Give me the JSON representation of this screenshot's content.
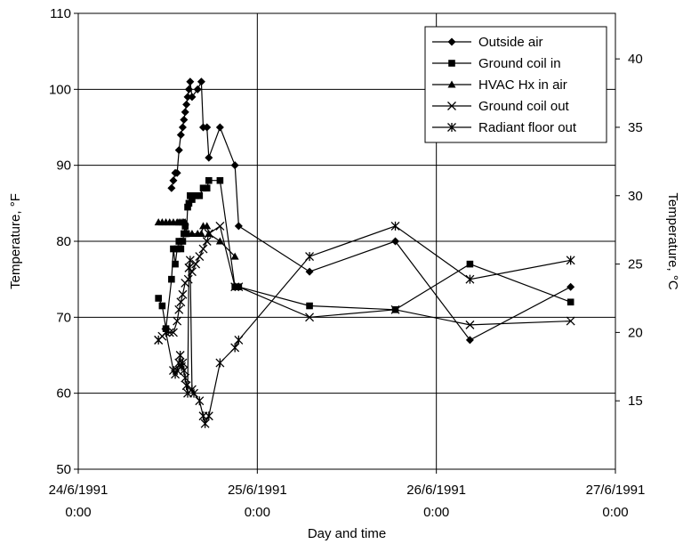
{
  "chart_data": {
    "type": "line",
    "xlabel": "Day and time",
    "ylabel": "Temperature, °F",
    "y2label": "Temperature, °C",
    "x_range": [
      "1991-06-24 00:00",
      "1991-06-27 00:00"
    ],
    "ylim": [
      50,
      110
    ],
    "y2lim": [
      10,
      43.33
    ],
    "x_ticks": [
      {
        "date": "24/6/1991",
        "time": "0:00"
      },
      {
        "date": "25/6/1991",
        "time": "0:00"
      },
      {
        "date": "26/6/1991",
        "time": "0:00"
      },
      {
        "date": "27/6/1991",
        "time": "0:00"
      }
    ],
    "y_ticks": [
      "50",
      "60",
      "70",
      "80",
      "90",
      "100",
      "110"
    ],
    "y2_ticks": [
      "15",
      "20",
      "25",
      "30",
      "35",
      "40"
    ],
    "grid": true,
    "legend_position": "top-right",
    "series": [
      {
        "name": "Outside air",
        "marker": "diamond",
        "points": [
          {
            "x": "1991-06-24 12:30",
            "y": 87
          },
          {
            "x": "1991-06-24 12:45",
            "y": 88
          },
          {
            "x": "1991-06-24 13:00",
            "y": 89
          },
          {
            "x": "1991-06-24 13:15",
            "y": 89
          },
          {
            "x": "1991-06-24 13:30",
            "y": 92
          },
          {
            "x": "1991-06-24 13:45",
            "y": 94
          },
          {
            "x": "1991-06-24 14:00",
            "y": 95
          },
          {
            "x": "1991-06-24 14:10",
            "y": 96
          },
          {
            "x": "1991-06-24 14:20",
            "y": 97
          },
          {
            "x": "1991-06-24 14:30",
            "y": 98
          },
          {
            "x": "1991-06-24 14:40",
            "y": 99
          },
          {
            "x": "1991-06-24 14:50",
            "y": 100
          },
          {
            "x": "1991-06-24 15:00",
            "y": 101
          },
          {
            "x": "1991-06-24 15:15",
            "y": 99
          },
          {
            "x": "1991-06-24 16:00",
            "y": 100
          },
          {
            "x": "1991-06-24 16:30",
            "y": 101
          },
          {
            "x": "1991-06-24 16:45",
            "y": 95
          },
          {
            "x": "1991-06-24 17:15",
            "y": 95
          },
          {
            "x": "1991-06-24 17:30",
            "y": 91
          },
          {
            "x": "1991-06-24 19:00",
            "y": 95
          },
          {
            "x": "1991-06-24 21:00",
            "y": 90
          },
          {
            "x": "1991-06-24 21:30",
            "y": 82
          },
          {
            "x": "1991-06-25 07:00",
            "y": 76
          },
          {
            "x": "1991-06-25 18:30",
            "y": 80
          },
          {
            "x": "1991-06-26 04:30",
            "y": 67
          },
          {
            "x": "1991-06-26 18:00",
            "y": 74
          }
        ]
      },
      {
        "name": "Ground coil in",
        "marker": "square",
        "points": [
          {
            "x": "1991-06-24 10:45",
            "y": 72.5
          },
          {
            "x": "1991-06-24 11:15",
            "y": 71.5
          },
          {
            "x": "1991-06-24 11:45",
            "y": 68.5
          },
          {
            "x": "1991-06-24 12:30",
            "y": 75
          },
          {
            "x": "1991-06-24 12:45",
            "y": 79
          },
          {
            "x": "1991-06-24 13:00",
            "y": 77
          },
          {
            "x": "1991-06-24 13:15",
            "y": 79
          },
          {
            "x": "1991-06-24 13:30",
            "y": 80
          },
          {
            "x": "1991-06-24 13:45",
            "y": 79
          },
          {
            "x": "1991-06-24 14:00",
            "y": 80
          },
          {
            "x": "1991-06-24 14:10",
            "y": 81
          },
          {
            "x": "1991-06-24 14:20",
            "y": 82
          },
          {
            "x": "1991-06-24 14:30",
            "y": 81
          },
          {
            "x": "1991-06-24 14:40",
            "y": 84.5
          },
          {
            "x": "1991-06-24 14:50",
            "y": 85
          },
          {
            "x": "1991-06-24 15:00",
            "y": 86
          },
          {
            "x": "1991-06-24 15:15",
            "y": 85.5
          },
          {
            "x": "1991-06-24 15:45",
            "y": 86
          },
          {
            "x": "1991-06-24 16:15",
            "y": 86
          },
          {
            "x": "1991-06-24 16:45",
            "y": 87
          },
          {
            "x": "1991-06-24 17:15",
            "y": 87
          },
          {
            "x": "1991-06-24 17:30",
            "y": 88
          },
          {
            "x": "1991-06-24 19:00",
            "y": 88
          },
          {
            "x": "1991-06-24 21:00",
            "y": 74
          },
          {
            "x": "1991-06-24 21:30",
            "y": 74
          },
          {
            "x": "1991-06-25 07:00",
            "y": 71.5
          },
          {
            "x": "1991-06-25 18:30",
            "y": 71
          },
          {
            "x": "1991-06-26 04:30",
            "y": 77
          },
          {
            "x": "1991-06-26 18:00",
            "y": 72
          }
        ]
      },
      {
        "name": "HVAC Hx in air",
        "marker": "triangle",
        "points": [
          {
            "x": "1991-06-24 10:45",
            "y": 82.5
          },
          {
            "x": "1991-06-24 11:15",
            "y": 82.5
          },
          {
            "x": "1991-06-24 11:45",
            "y": 82.5
          },
          {
            "x": "1991-06-24 12:15",
            "y": 82.5
          },
          {
            "x": "1991-06-24 12:45",
            "y": 82.5
          },
          {
            "x": "1991-06-24 13:15",
            "y": 82.5
          },
          {
            "x": "1991-06-24 13:30",
            "y": 82.5
          },
          {
            "x": "1991-06-24 13:45",
            "y": 82.5
          },
          {
            "x": "1991-06-24 14:00",
            "y": 82.5
          },
          {
            "x": "1991-06-24 14:10",
            "y": 82.5
          },
          {
            "x": "1991-06-24 14:20",
            "y": 82.5
          },
          {
            "x": "1991-06-24 14:30",
            "y": 81
          },
          {
            "x": "1991-06-24 14:45",
            "y": 81
          },
          {
            "x": "1991-06-24 15:15",
            "y": 81
          },
          {
            "x": "1991-06-24 16:00",
            "y": 81
          },
          {
            "x": "1991-06-24 16:30",
            "y": 81
          },
          {
            "x": "1991-06-24 16:45",
            "y": 82
          },
          {
            "x": "1991-06-24 17:15",
            "y": 82
          },
          {
            "x": "1991-06-24 17:30",
            "y": 81
          },
          {
            "x": "1991-06-24 19:00",
            "y": 80
          },
          {
            "x": "1991-06-24 21:00",
            "y": 78
          }
        ]
      },
      {
        "name": "Ground coil out",
        "marker": "x",
        "points": [
          {
            "x": "1991-06-24 10:45",
            "y": 67
          },
          {
            "x": "1991-06-24 11:15",
            "y": 67.5
          },
          {
            "x": "1991-06-24 11:45",
            "y": 68
          },
          {
            "x": "1991-06-24 12:15",
            "y": 68
          },
          {
            "x": "1991-06-24 12:45",
            "y": 68
          },
          {
            "x": "1991-06-24 13:15",
            "y": 69.5
          },
          {
            "x": "1991-06-24 13:30",
            "y": 71
          },
          {
            "x": "1991-06-24 13:45",
            "y": 72
          },
          {
            "x": "1991-06-24 14:00",
            "y": 73
          },
          {
            "x": "1991-06-24 14:20",
            "y": 74.5
          },
          {
            "x": "1991-06-24 14:45",
            "y": 75
          },
          {
            "x": "1991-06-24 15:15",
            "y": 76
          },
          {
            "x": "1991-06-24 15:45",
            "y": 77
          },
          {
            "x": "1991-06-24 16:15",
            "y": 78
          },
          {
            "x": "1991-06-24 16:45",
            "y": 79
          },
          {
            "x": "1991-06-24 17:15",
            "y": 80
          },
          {
            "x": "1991-06-24 17:30",
            "y": 81
          },
          {
            "x": "1991-06-24 19:00",
            "y": 82
          },
          {
            "x": "1991-06-24 21:00",
            "y": 74
          },
          {
            "x": "1991-06-24 21:30",
            "y": 74
          },
          {
            "x": "1991-06-25 07:00",
            "y": 70
          },
          {
            "x": "1991-06-25 18:30",
            "y": 71
          },
          {
            "x": "1991-06-26 04:30",
            "y": 69
          },
          {
            "x": "1991-06-26 18:00",
            "y": 69.5
          }
        ]
      },
      {
        "name": "Radiant floor out",
        "marker": "star",
        "points": [
          {
            "x": "1991-06-24 10:45",
            "y": 67
          },
          {
            "x": "1991-06-24 11:45",
            "y": 68
          },
          {
            "x": "1991-06-24 12:45",
            "y": 63
          },
          {
            "x": "1991-06-24 13:00",
            "y": 62.5
          },
          {
            "x": "1991-06-24 13:15",
            "y": 63
          },
          {
            "x": "1991-06-24 13:30",
            "y": 64
          },
          {
            "x": "1991-06-24 13:40",
            "y": 65
          },
          {
            "x": "1991-06-24 13:50",
            "y": 63.5
          },
          {
            "x": "1991-06-24 14:00",
            "y": 64
          },
          {
            "x": "1991-06-24 14:10",
            "y": 63
          },
          {
            "x": "1991-06-24 14:20",
            "y": 62
          },
          {
            "x": "1991-06-24 14:30",
            "y": 61
          },
          {
            "x": "1991-06-24 14:40",
            "y": 60
          },
          {
            "x": "1991-06-24 14:50",
            "y": 76.5
          },
          {
            "x": "1991-06-24 15:00",
            "y": 77.5
          },
          {
            "x": "1991-06-24 15:15",
            "y": 60.5
          },
          {
            "x": "1991-06-24 15:30",
            "y": 60
          },
          {
            "x": "1991-06-24 16:15",
            "y": 59
          },
          {
            "x": "1991-06-24 16:45",
            "y": 57
          },
          {
            "x": "1991-06-24 17:00",
            "y": 56
          },
          {
            "x": "1991-06-24 17:30",
            "y": 57
          },
          {
            "x": "1991-06-24 19:00",
            "y": 64
          },
          {
            "x": "1991-06-24 21:00",
            "y": 66
          },
          {
            "x": "1991-06-24 21:30",
            "y": 67
          },
          {
            "x": "1991-06-25 07:00",
            "y": 78
          },
          {
            "x": "1991-06-25 18:30",
            "y": 82
          },
          {
            "x": "1991-06-26 04:30",
            "y": 75
          },
          {
            "x": "1991-06-26 18:00",
            "y": 77.5
          }
        ]
      }
    ]
  }
}
